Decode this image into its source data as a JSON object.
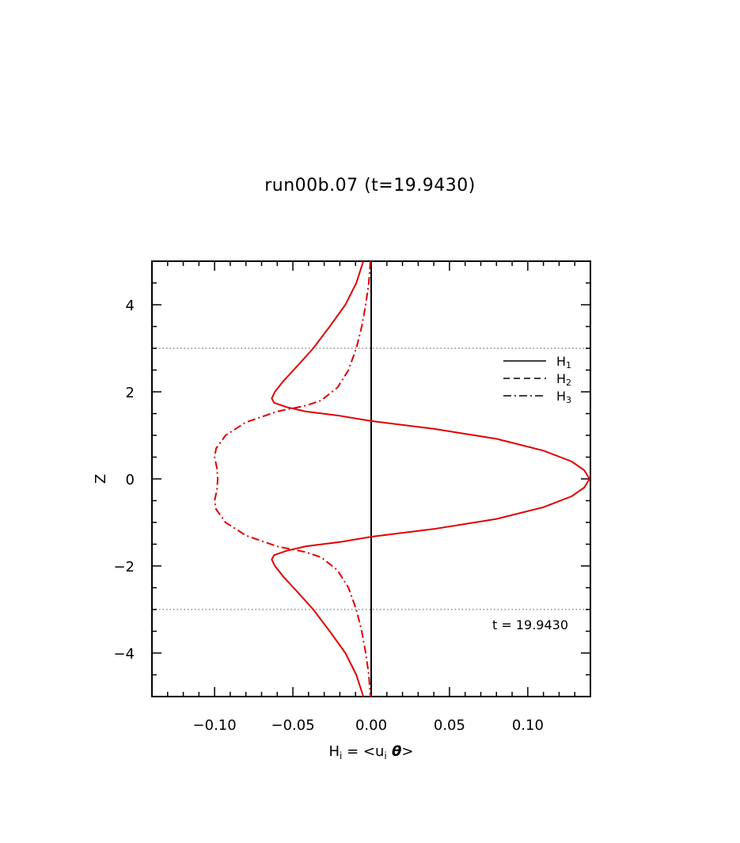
{
  "title": "run00b.07 (t=19.9430)",
  "chart_data": {
    "type": "line",
    "xlabel": {
      "main": "H",
      "sub": "i",
      "eq": " = <u",
      "sub2": "i",
      "theta": " θ",
      "close": ">"
    },
    "ylabel": "Z",
    "xlim": [
      -0.14,
      0.14
    ],
    "ylim": [
      -5,
      5
    ],
    "x_ticks": [
      -0.1,
      -0.05,
      0.0,
      0.05,
      0.1
    ],
    "x_tick_labels": [
      "−0.10",
      "−0.05",
      "0.00",
      "0.05",
      "0.10"
    ],
    "y_ticks": [
      -4,
      -2,
      0,
      2,
      4
    ],
    "y_tick_labels": [
      "−4",
      "−2",
      "0",
      "2",
      "4"
    ],
    "reference_lines": {
      "horizontal": [
        3,
        -3
      ],
      "vertical": [
        0
      ]
    },
    "annotation": "t = 19.9430",
    "legend": {
      "placement": "top-right",
      "entries": [
        {
          "label": "H",
          "sub": "1",
          "style": "solid"
        },
        {
          "label": "H",
          "sub": "2",
          "style": "dashed"
        },
        {
          "label": "H",
          "sub": "3",
          "style": "dashdot"
        }
      ]
    },
    "series": [
      {
        "name": "H1",
        "style": "solid",
        "color": "#e00000",
        "points": [
          [
            -0.005,
            5.0
          ],
          [
            -0.0095,
            4.5
          ],
          [
            -0.0165,
            4.0
          ],
          [
            -0.0265,
            3.5
          ],
          [
            -0.037,
            3.0
          ],
          [
            -0.047,
            2.6
          ],
          [
            -0.056,
            2.25
          ],
          [
            -0.0615,
            2.0
          ],
          [
            -0.0635,
            1.85
          ],
          [
            -0.062,
            1.75
          ],
          [
            -0.054,
            1.65
          ],
          [
            -0.042,
            1.55
          ],
          [
            -0.02,
            1.45
          ],
          [
            0.0,
            1.33
          ],
          [
            0.04,
            1.15
          ],
          [
            0.08,
            0.92
          ],
          [
            0.11,
            0.65
          ],
          [
            0.128,
            0.4
          ],
          [
            0.136,
            0.2
          ],
          [
            0.1395,
            0.0
          ],
          [
            0.136,
            -0.2
          ],
          [
            0.128,
            -0.4
          ],
          [
            0.11,
            -0.65
          ],
          [
            0.08,
            -0.92
          ],
          [
            0.04,
            -1.15
          ],
          [
            0.0,
            -1.33
          ],
          [
            -0.02,
            -1.45
          ],
          [
            -0.042,
            -1.55
          ],
          [
            -0.054,
            -1.65
          ],
          [
            -0.062,
            -1.75
          ],
          [
            -0.0635,
            -1.85
          ],
          [
            -0.0615,
            -2.0
          ],
          [
            -0.056,
            -2.25
          ],
          [
            -0.047,
            -2.6
          ],
          [
            -0.037,
            -3.0
          ],
          [
            -0.0265,
            -3.5
          ],
          [
            -0.0165,
            -4.0
          ],
          [
            -0.0095,
            -4.5
          ],
          [
            -0.005,
            -5.0
          ]
        ]
      },
      {
        "name": "H3",
        "style": "dashdot",
        "color": "#e00000",
        "points": [
          [
            -0.0005,
            5.0
          ],
          [
            -0.0015,
            4.5
          ],
          [
            -0.0035,
            4.0
          ],
          [
            -0.006,
            3.5
          ],
          [
            -0.0095,
            3.0
          ],
          [
            -0.0145,
            2.5
          ],
          [
            -0.0215,
            2.1
          ],
          [
            -0.032,
            1.8
          ],
          [
            -0.042,
            1.68
          ],
          [
            -0.06,
            1.55
          ],
          [
            -0.08,
            1.3
          ],
          [
            -0.093,
            1.0
          ],
          [
            -0.099,
            0.7
          ],
          [
            -0.1,
            0.5
          ],
          [
            -0.0985,
            0.25
          ],
          [
            -0.098,
            0.0
          ],
          [
            -0.0985,
            -0.25
          ],
          [
            -0.1,
            -0.5
          ],
          [
            -0.099,
            -0.7
          ],
          [
            -0.093,
            -1.0
          ],
          [
            -0.08,
            -1.3
          ],
          [
            -0.06,
            -1.55
          ],
          [
            -0.042,
            -1.68
          ],
          [
            -0.032,
            -1.8
          ],
          [
            -0.0215,
            -2.1
          ],
          [
            -0.0145,
            -2.5
          ],
          [
            -0.0095,
            -3.0
          ],
          [
            -0.006,
            -3.5
          ],
          [
            -0.0035,
            -4.0
          ],
          [
            -0.0015,
            -4.5
          ],
          [
            -0.0005,
            -5.0
          ]
        ]
      }
    ]
  }
}
